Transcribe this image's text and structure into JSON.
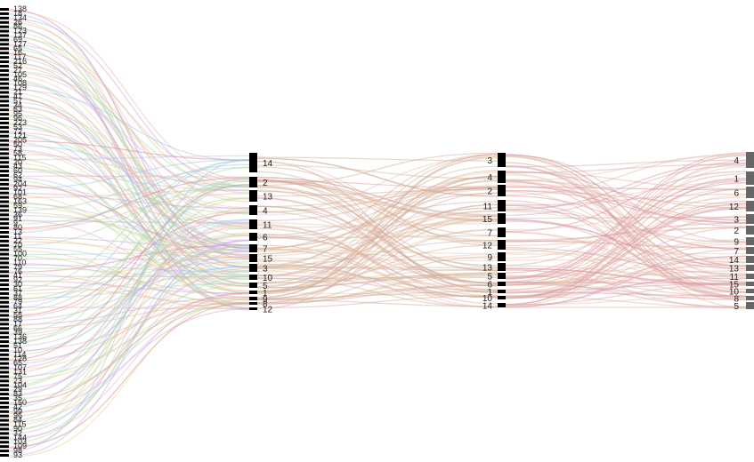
{
  "diagram": {
    "type": "sankey",
    "column0": {
      "labels": [
        "138",
        "18",
        "134",
        "26",
        "86",
        "123",
        "137",
        "69",
        "127",
        "65",
        "16",
        "117",
        "216",
        "52",
        "27",
        "105",
        "46",
        "108",
        "129",
        "21",
        "47",
        "57",
        "34",
        "63",
        "95",
        "96",
        "223",
        "53",
        "72",
        "121",
        "205",
        "50",
        "73",
        "58",
        "115",
        "20",
        "43",
        "60",
        "62",
        "94",
        "204",
        "92",
        "101",
        "68",
        "163",
        "59",
        "139",
        "36",
        "91",
        "9",
        "80",
        "13",
        "11",
        "22",
        "70",
        "55",
        "100",
        "70",
        "110",
        "79",
        "76",
        "41",
        "92",
        "30",
        "61",
        "37",
        "88",
        "79",
        "64",
        "31",
        "55",
        "88",
        "17",
        "66",
        "39",
        "136",
        "138",
        "51",
        "10",
        "114",
        "128",
        "65",
        "107",
        "131",
        "75",
        "23",
        "104",
        "29",
        "83",
        "35",
        "150",
        "42",
        "99",
        "96",
        "84",
        "115",
        "90",
        "32",
        "144",
        "103",
        "109",
        "98",
        "93"
      ]
    },
    "column1": {
      "labels": [
        "14",
        "2",
        "13",
        "4",
        "11",
        "6",
        "7",
        "15",
        "3",
        "10",
        "5",
        "1",
        "9",
        "8",
        "12"
      ]
    },
    "column2": {
      "labels": [
        "3",
        "4",
        "2",
        "11",
        "15",
        "7",
        "12",
        "9",
        "13",
        "5",
        "6",
        "1",
        "10",
        "14"
      ]
    },
    "column3": {
      "labels": [
        "4",
        "1",
        "6",
        "12",
        "3",
        "2",
        "9",
        "7",
        "14",
        "13",
        "11",
        "15",
        "10",
        "8",
        "5"
      ]
    },
    "colors": {
      "flow_palette": [
        "#d97a8c",
        "#9ec4e6",
        "#c9a3d9",
        "#e8b4a0",
        "#a8d4a0",
        "#e6d08a",
        "#9fd3c7",
        "#c7b8e0",
        "#f0a8b8",
        "#b8d890"
      ],
      "flow_mid": "#d4a890",
      "flow_mid_alt": "#e2c4a4",
      "node_dark": "#000000",
      "node_grey": "#666666"
    }
  }
}
